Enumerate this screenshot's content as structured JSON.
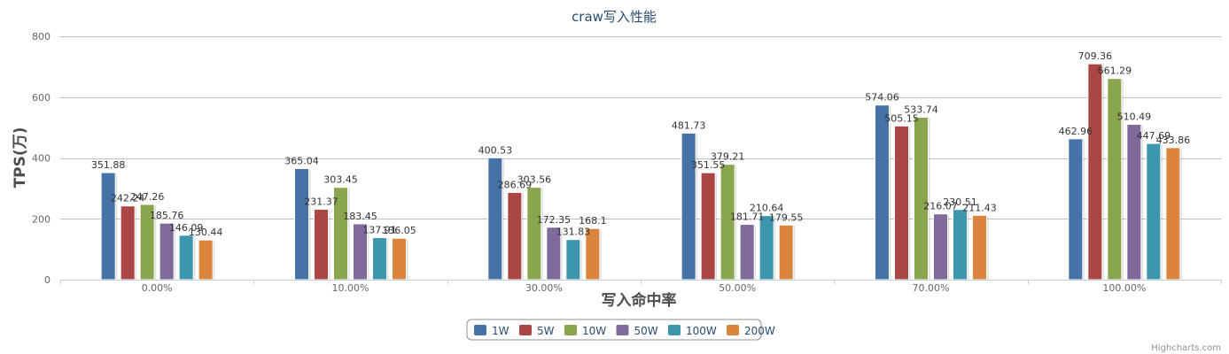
{
  "chart_data": {
    "type": "bar",
    "title": "craw写入性能",
    "xlabel": "写入命中率",
    "ylabel": "TPS(万)",
    "ylim": [
      0,
      800
    ],
    "yticks": [
      0,
      200,
      400,
      600,
      800
    ],
    "grid": true,
    "legend_position": "bottom-center",
    "categories": [
      "0.00%",
      "10.00%",
      "30.00%",
      "50.00%",
      "70.00%",
      "100.00%"
    ],
    "series": [
      {
        "name": "1W",
        "color": "#4572a7",
        "values": [
          351.88,
          365.04,
          400.53,
          481.73,
          574.06,
          462.96
        ]
      },
      {
        "name": "5W",
        "color": "#aa4643",
        "values": [
          242.24,
          231.37,
          286.69,
          351.55,
          505.15,
          709.36
        ]
      },
      {
        "name": "10W",
        "color": "#89a54e",
        "values": [
          247.26,
          303.45,
          303.56,
          379.21,
          533.74,
          661.29
        ]
      },
      {
        "name": "50W",
        "color": "#80699b",
        "values": [
          185.76,
          183.45,
          172.35,
          181.71,
          216.07,
          510.49
        ]
      },
      {
        "name": "100W",
        "color": "#3d96ae",
        "values": [
          146.09,
          137.91,
          131.83,
          210.64,
          230.51,
          447.69
        ]
      },
      {
        "name": "200W",
        "color": "#db843d",
        "values": [
          130.44,
          136.05,
          168.1,
          179.55,
          211.43,
          433.86
        ]
      }
    ]
  },
  "credits": "Highcharts.com"
}
